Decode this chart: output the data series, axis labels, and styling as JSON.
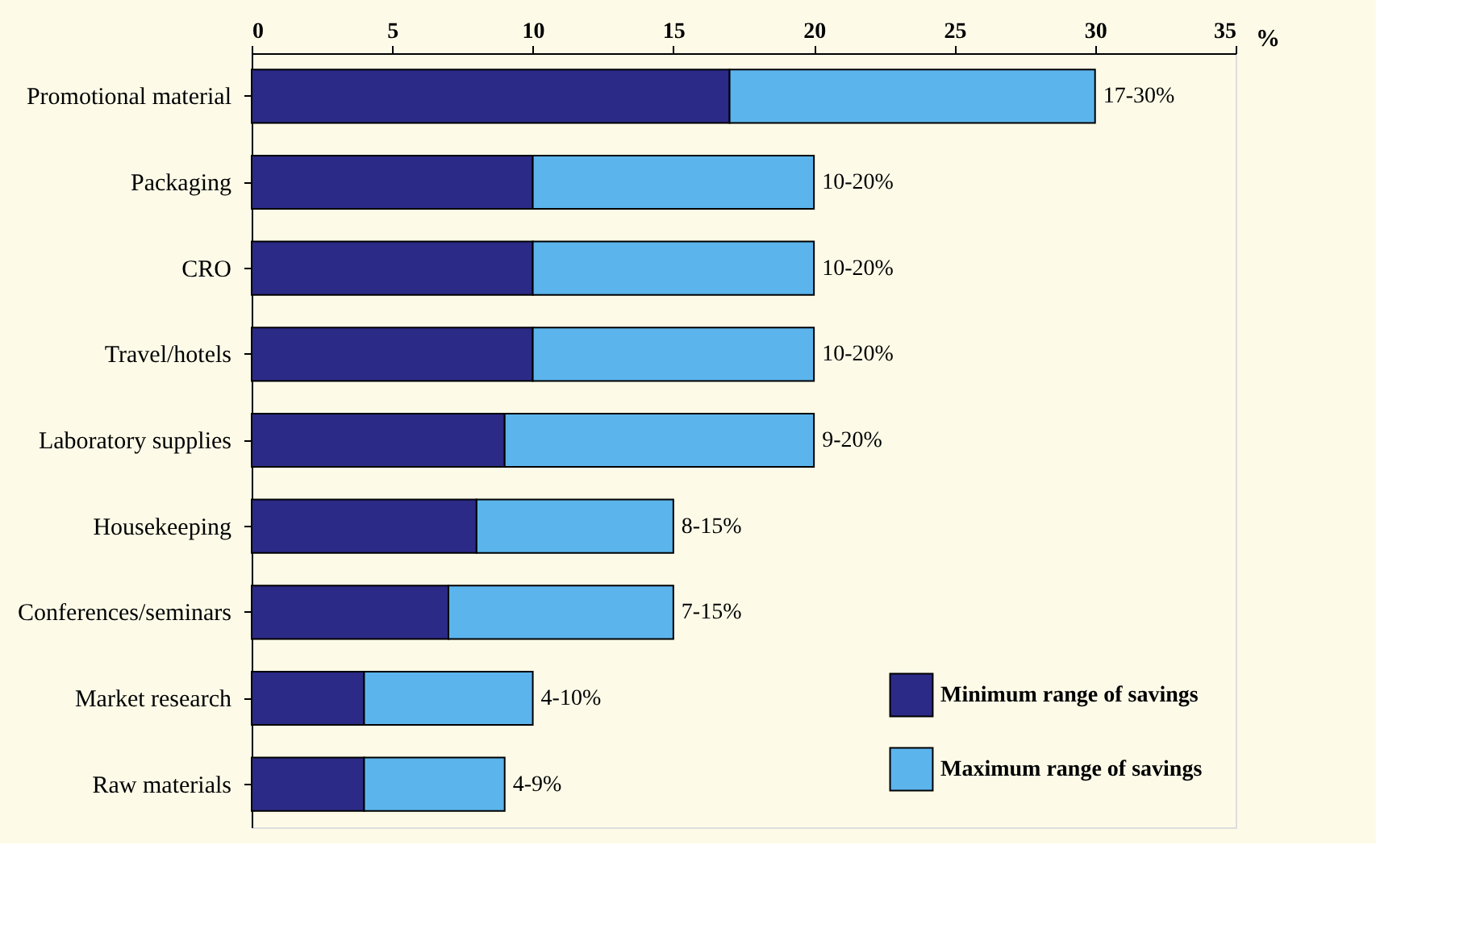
{
  "chart_data": {
    "type": "bar",
    "orientation": "horizontal",
    "stacked": true,
    "xlabel": "%",
    "categories": [
      "Promotional material",
      "Packaging",
      "CRO",
      "Travel/hotels",
      "Laboratory supplies",
      "Housekeeping",
      "Conferences/seminars",
      "Market research",
      "Raw materials"
    ],
    "series": [
      {
        "name": "Minimum range of savings",
        "color": "#2b2a86",
        "values": [
          17,
          10,
          10,
          10,
          9,
          8,
          7,
          4,
          4
        ]
      },
      {
        "name": "Maximum range of savings",
        "color": "#5cb4ec",
        "values": [
          13,
          10,
          10,
          10,
          11,
          7,
          8,
          6,
          5
        ]
      }
    ],
    "totals": [
      "17-30%",
      "10-20%",
      "10-20%",
      "10-20%",
      "9-20%",
      "8-15%",
      "7-15%",
      "4-10%",
      "4-9%"
    ],
    "xlim": [
      0,
      35
    ],
    "xticks": [
      0,
      5,
      10,
      15,
      20,
      25,
      30,
      35
    ],
    "grid": false,
    "legend": "bottom right"
  }
}
